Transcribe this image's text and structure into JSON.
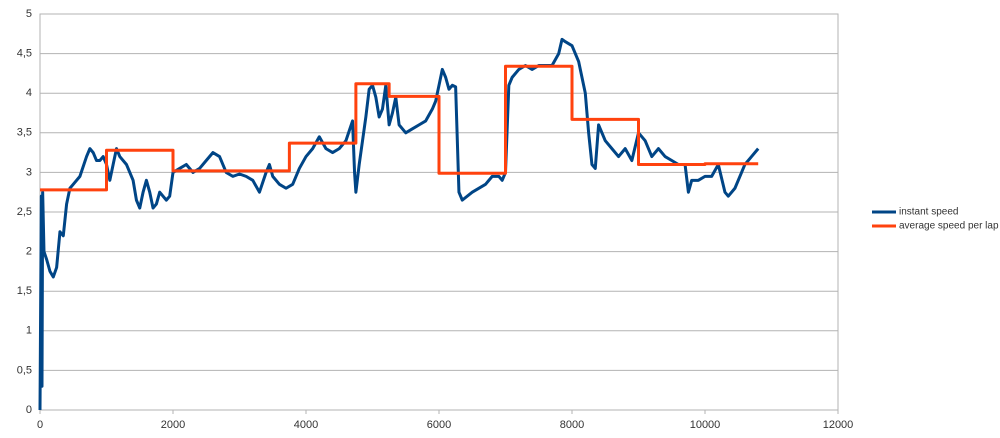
{
  "chart_data": {
    "type": "line",
    "xlim": [
      0,
      12000
    ],
    "xticks": [
      0,
      2000,
      4000,
      6000,
      8000,
      10000,
      12000
    ],
    "ylim": [
      0,
      5
    ],
    "yticks": [
      0,
      {
        "value": 0.5,
        "label": "0,5"
      },
      1,
      {
        "value": 1.5,
        "label": "1,5"
      },
      2,
      {
        "value": 2.5,
        "label": "2,5"
      },
      3,
      {
        "value": 3.5,
        "label": "3,5"
      },
      4,
      {
        "value": 4.5,
        "label": "4,5"
      },
      5
    ],
    "grid": true,
    "legend": "right",
    "series": [
      {
        "name": "instant speed",
        "color": "#004586",
        "x": [
          0,
          20,
          30,
          40,
          60,
          100,
          150,
          200,
          250,
          300,
          350,
          400,
          450,
          500,
          600,
          700,
          750,
          800,
          850,
          900,
          950,
          1000,
          1050,
          1100,
          1150,
          1200,
          1300,
          1400,
          1450,
          1500,
          1550,
          1600,
          1650,
          1700,
          1750,
          1800,
          1850,
          1900,
          1950,
          2000,
          2100,
          2200,
          2300,
          2400,
          2500,
          2600,
          2700,
          2800,
          2900,
          3000,
          3100,
          3200,
          3300,
          3400,
          3450,
          3500,
          3600,
          3700,
          3800,
          3900,
          4000,
          4100,
          4200,
          4300,
          4400,
          4500,
          4600,
          4700,
          4730,
          4750,
          4800,
          4850,
          4900,
          4950,
          5000,
          5050,
          5100,
          5150,
          5200,
          5250,
          5300,
          5350,
          5400,
          5500,
          5600,
          5700,
          5800,
          5900,
          5950,
          6000,
          6050,
          6100,
          6150,
          6200,
          6250,
          6300,
          6350,
          6500,
          6700,
          6800,
          6900,
          6950,
          7000,
          7050,
          7100,
          7200,
          7300,
          7400,
          7500,
          7600,
          7700,
          7800,
          7850,
          7900,
          8000,
          8100,
          8200,
          8250,
          8300,
          8350,
          8400,
          8500,
          8600,
          8700,
          8800,
          8900,
          9000,
          9100,
          9200,
          9300,
          9400,
          9500,
          9600,
          9700,
          9750,
          9800,
          9900,
          10000,
          10100,
          10200,
          10300,
          10350,
          10450,
          10550,
          10600,
          10700,
          10800
        ],
        "values": [
          0,
          2.7,
          0.3,
          2.75,
          2.0,
          1.9,
          1.75,
          1.68,
          1.8,
          2.25,
          2.2,
          2.6,
          2.8,
          2.85,
          2.95,
          3.2,
          3.3,
          3.25,
          3.15,
          3.15,
          3.2,
          3.1,
          2.9,
          3.1,
          3.3,
          3.2,
          3.1,
          2.9,
          2.65,
          2.55,
          2.75,
          2.9,
          2.75,
          2.55,
          2.6,
          2.75,
          2.7,
          2.65,
          2.7,
          3.0,
          3.05,
          3.1,
          3.0,
          3.05,
          3.15,
          3.25,
          3.2,
          3.0,
          2.95,
          2.98,
          2.95,
          2.9,
          2.75,
          3.0,
          3.1,
          2.95,
          2.85,
          2.8,
          2.85,
          3.05,
          3.2,
          3.3,
          3.45,
          3.3,
          3.25,
          3.3,
          3.4,
          3.65,
          3.0,
          2.75,
          3.1,
          3.4,
          3.7,
          4.05,
          4.1,
          3.95,
          3.7,
          3.8,
          4.1,
          3.6,
          3.75,
          3.95,
          3.6,
          3.5,
          3.55,
          3.6,
          3.65,
          3.8,
          3.9,
          4.1,
          4.3,
          4.2,
          4.05,
          4.1,
          4.08,
          2.75,
          2.65,
          2.75,
          2.85,
          2.95,
          2.95,
          2.9,
          3.0,
          4.1,
          4.2,
          4.3,
          4.35,
          4.3,
          4.35,
          4.35,
          4.35,
          4.5,
          4.68,
          4.65,
          4.6,
          4.4,
          4.0,
          3.5,
          3.1,
          3.05,
          3.6,
          3.4,
          3.3,
          3.2,
          3.3,
          3.15,
          3.5,
          3.4,
          3.2,
          3.3,
          3.2,
          3.15,
          3.1,
          3.1,
          2.75,
          2.9,
          2.9,
          2.95,
          2.95,
          3.1,
          2.75,
          2.7,
          2.8,
          3.0,
          3.1,
          3.2,
          3.3
        ]
      },
      {
        "name": "average speed per lap",
        "color": "#ff420e",
        "x": [
          0,
          1000,
          1000,
          2000,
          2000,
          3750,
          3750,
          4750,
          4750,
          5250,
          5250,
          6000,
          6000,
          7000,
          7000,
          8000,
          8000,
          9000,
          9000,
          10000,
          10000,
          10800
        ],
        "values": [
          2.78,
          2.78,
          3.28,
          3.28,
          3.02,
          3.02,
          3.37,
          3.37,
          4.12,
          4.12,
          3.96,
          3.96,
          2.99,
          2.99,
          4.34,
          4.34,
          3.67,
          3.67,
          3.1,
          3.1,
          3.11,
          3.11
        ]
      }
    ]
  }
}
